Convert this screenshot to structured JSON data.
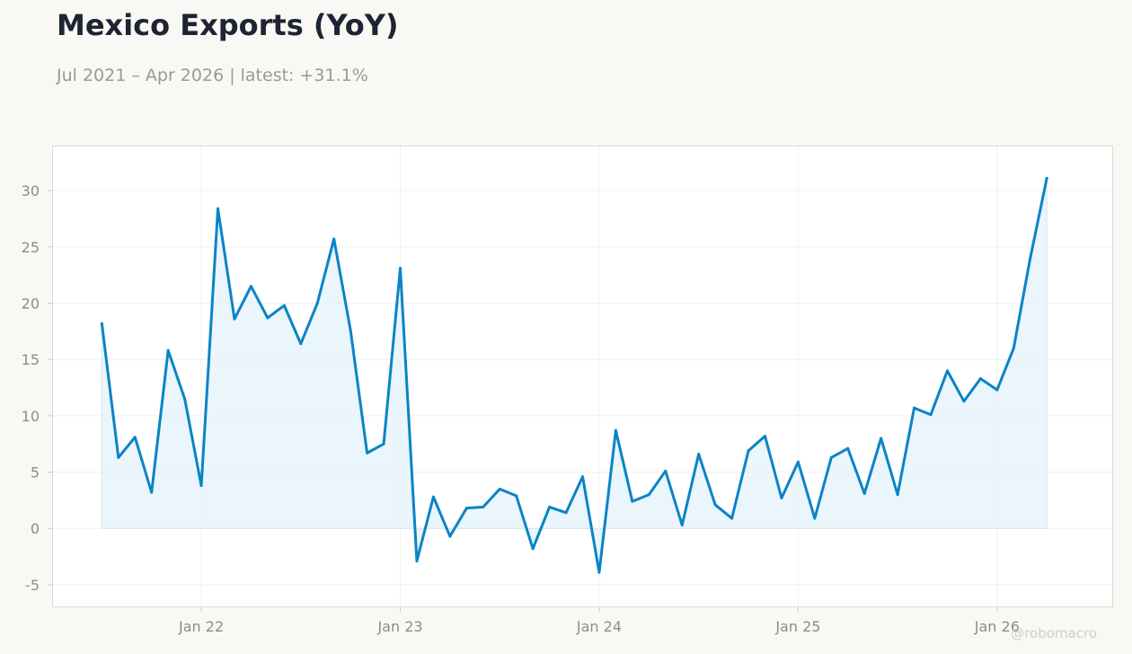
{
  "chart_data": {
    "type": "area",
    "title": "Mexico Exports (YoY)",
    "subtitle": "Jul 2021 – Apr 2026 | latest: +31.1%",
    "watermark": "@robomacro",
    "xlabel": "",
    "ylabel": "",
    "ylim": [
      -7,
      34
    ],
    "xlim": [
      "2021-04",
      "2026-08"
    ],
    "grid": true,
    "line_color": "#0a84c6",
    "fill_color": "#e4f1fb",
    "x_ticks": [
      {
        "date": "2022-01",
        "label": "Jan 22"
      },
      {
        "date": "2023-01",
        "label": "Jan 23"
      },
      {
        "date": "2024-01",
        "label": "Jan 24"
      },
      {
        "date": "2025-01",
        "label": "Jan 25"
      },
      {
        "date": "2026-01",
        "label": "Jan 26"
      }
    ],
    "y_ticks": [
      {
        "value": -5,
        "label": "-5"
      },
      {
        "value": 0,
        "label": "0"
      },
      {
        "value": 5,
        "label": "5"
      },
      {
        "value": 10,
        "label": "10"
      },
      {
        "value": 15,
        "label": "15"
      },
      {
        "value": 20,
        "label": "20"
      },
      {
        "value": 25,
        "label": "25"
      },
      {
        "value": 30,
        "label": "30"
      }
    ],
    "x": [
      "2021-07",
      "2021-08",
      "2021-09",
      "2021-10",
      "2021-11",
      "2021-12",
      "2022-01",
      "2022-02",
      "2022-03",
      "2022-04",
      "2022-05",
      "2022-06",
      "2022-07",
      "2022-08",
      "2022-09",
      "2022-10",
      "2022-11",
      "2022-12",
      "2023-01",
      "2023-02",
      "2023-03",
      "2023-04",
      "2023-05",
      "2023-06",
      "2023-07",
      "2023-08",
      "2023-09",
      "2023-10",
      "2023-11",
      "2023-12",
      "2024-01",
      "2024-02",
      "2024-03",
      "2024-04",
      "2024-05",
      "2024-06",
      "2024-07",
      "2024-08",
      "2024-09",
      "2024-10",
      "2024-11",
      "2024-12",
      "2025-01",
      "2025-02",
      "2025-03",
      "2025-04",
      "2025-05",
      "2025-06",
      "2025-07",
      "2025-08",
      "2025-09",
      "2025-10",
      "2025-11",
      "2025-12",
      "2026-01",
      "2026-02",
      "2026-03",
      "2026-04"
    ],
    "values": [
      18.2,
      6.3,
      8.1,
      3.2,
      15.8,
      11.5,
      3.8,
      28.4,
      18.6,
      21.5,
      18.7,
      19.8,
      16.4,
      20.0,
      25.7,
      17.6,
      6.7,
      7.5,
      23.1,
      -2.9,
      2.8,
      -0.7,
      1.8,
      1.9,
      3.5,
      2.9,
      -1.8,
      1.9,
      1.4,
      4.6,
      -3.9,
      8.7,
      2.4,
      3.0,
      5.1,
      0.3,
      6.6,
      2.1,
      0.9,
      6.9,
      8.2,
      2.7,
      5.9,
      0.9,
      6.3,
      7.1,
      3.1,
      8.0,
      3.0,
      10.7,
      10.1,
      14.0,
      11.3,
      13.3,
      12.3,
      16.0,
      24.0,
      31.1
    ]
  }
}
